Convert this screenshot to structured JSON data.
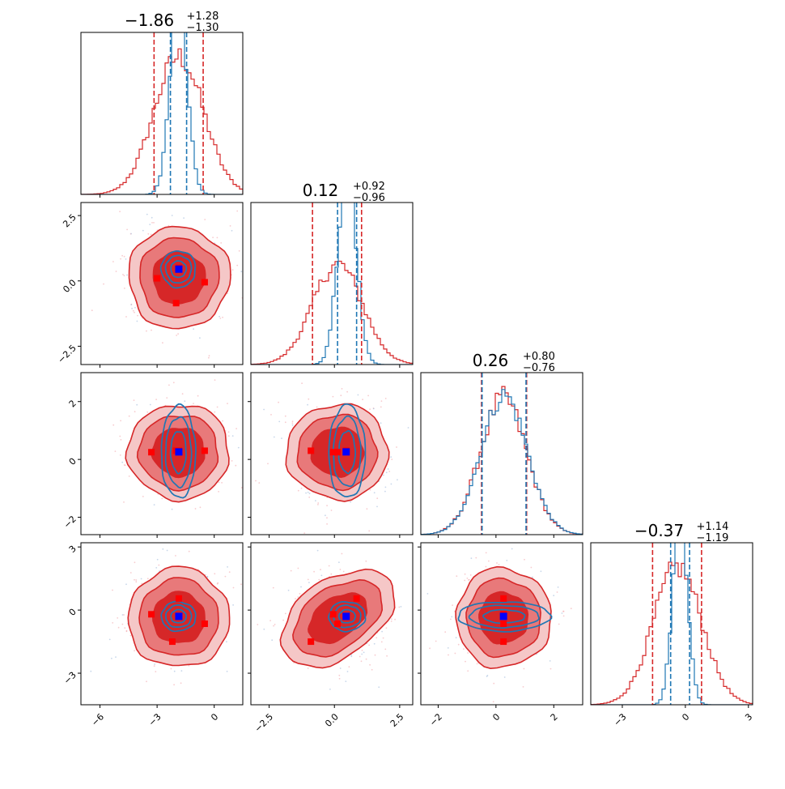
{
  "chart_data": {
    "type": "corner",
    "params": [
      {
        "median": -1.86,
        "title_main": "−1.86",
        "title_plus": "+1.28",
        "title_minus": "−1.30",
        "range": [
          -7.0,
          1.5
        ],
        "ticks": [
          -6,
          -3,
          0
        ],
        "tick_labels": [
          "−6",
          "−3",
          "0"
        ],
        "quantiles_red": [
          -3.16,
          -0.58
        ],
        "quantiles_blue": [
          -2.3,
          -1.45
        ],
        "red_sigma": 1.3,
        "blue_sigma": 0.45
      },
      {
        "median": 0.12,
        "title_main": "0.12",
        "title_plus": "+0.92",
        "title_minus": "−0.96",
        "range": [
          -3.2,
          3.0
        ],
        "ticks": [
          -2.5,
          0.0,
          2.5
        ],
        "tick_labels": [
          "−2.5",
          "0.0",
          "2.5"
        ],
        "quantiles_red": [
          -0.84,
          1.04
        ],
        "quantiles_blue": [
          0.12,
          0.85
        ],
        "red_sigma": 0.95,
        "blue_sigma": 0.35
      },
      {
        "median": 0.26,
        "title_main": "0.26",
        "title_plus": "+0.80",
        "title_minus": "−0.76",
        "range": [
          -2.6,
          3.0
        ],
        "ticks": [
          -2,
          0,
          2
        ],
        "tick_labels": [
          "−2",
          "0",
          "2"
        ],
        "quantiles_red": [
          -0.5,
          1.06
        ],
        "quantiles_blue": [
          -0.48,
          1.04
        ],
        "red_sigma": 0.8,
        "blue_sigma": 0.8
      },
      {
        "median": -0.37,
        "title_main": "−0.37",
        "title_plus": "+1.14",
        "title_minus": "−1.19",
        "range": [
          -4.5,
          3.2
        ],
        "ticks": [
          -3,
          0,
          3
        ],
        "tick_labels": [
          "−3",
          "0",
          "3"
        ],
        "quantiles_red": [
          -1.56,
          0.77
        ],
        "quantiles_blue": [
          -0.7,
          0.2
        ],
        "red_sigma": 1.15,
        "blue_sigma": 0.35
      }
    ],
    "truth_blue": [
      -1.86,
      0.45,
      0.26,
      -0.3
    ],
    "red_markers": {
      "1-0": [
        [
          -3.0,
          0.1
        ],
        [
          -1.86,
          0.5
        ],
        [
          -0.5,
          -0.05
        ],
        [
          -2.0,
          -0.85
        ]
      ],
      "2-0": [
        [
          -3.3,
          0.25
        ],
        [
          -2.0,
          0.3
        ],
        [
          -1.86,
          0.3
        ],
        [
          -0.5,
          0.3
        ]
      ],
      "2-1": [
        [
          -0.9,
          0.3
        ],
        [
          -0.05,
          0.25
        ],
        [
          0.12,
          0.25
        ],
        [
          0.45,
          0.3
        ]
      ],
      "3-0": [
        [
          -3.3,
          -0.2
        ],
        [
          -1.86,
          0.55
        ],
        [
          -0.5,
          -0.65
        ],
        [
          -2.2,
          -1.5
        ]
      ],
      "3-1": [
        [
          -0.9,
          -1.5
        ],
        [
          -0.05,
          -0.2
        ],
        [
          0.12,
          -0.65
        ],
        [
          0.85,
          0.55
        ]
      ],
      "3-2": [
        [
          0.26,
          0.55
        ],
        [
          0.26,
          -0.2
        ],
        [
          0.26,
          -0.65
        ],
        [
          0.26,
          -1.5
        ]
      ]
    },
    "colors": {
      "red": "#d62728",
      "red_mid": "#e8797a",
      "red_light": "#f5c7c7",
      "blue": "#1f77b4",
      "marker_blue": "#0000ff",
      "marker_red": "#ff0000"
    }
  }
}
